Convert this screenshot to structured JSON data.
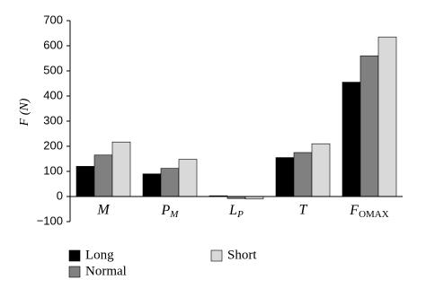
{
  "chart_data": {
    "type": "bar",
    "y_label": "F (N)",
    "categories": [
      "M",
      "PM",
      "LP",
      "T",
      "FOMAX"
    ],
    "series": [
      {
        "name": "Long",
        "color": "#000000",
        "values": [
          120,
          90,
          3,
          155,
          455
        ]
      },
      {
        "name": "Normal",
        "color": "#808080",
        "values": [
          165,
          112,
          -8,
          175,
          560
        ]
      },
      {
        "name": "Short",
        "color": "#d9d9d9",
        "values": [
          217,
          148,
          -10,
          210,
          635
        ]
      }
    ],
    "ylim": [
      -100,
      700
    ],
    "yticks": [
      {
        "value": -100,
        "label": "−100"
      },
      0,
      100,
      200,
      300,
      400,
      500,
      600,
      700
    ],
    "grid": false
  }
}
